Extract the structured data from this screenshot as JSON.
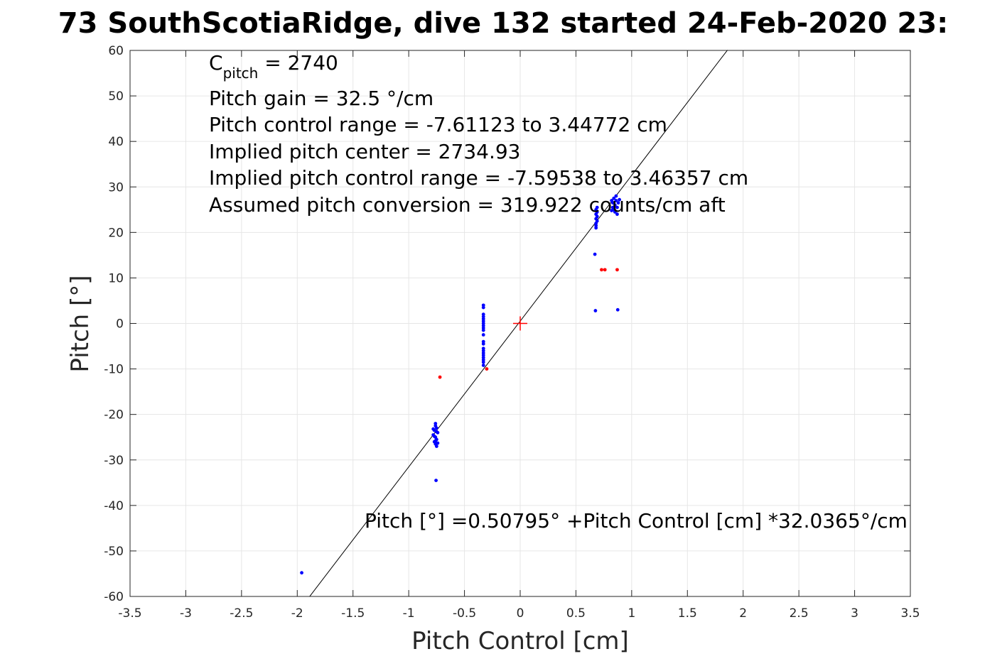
{
  "chart_data": {
    "type": "scatter",
    "title": "73 SouthScotiaRidge, dive 132 started 24-Feb-2020 23:",
    "xlabel": "Pitch Control [cm]",
    "ylabel": "Pitch [°]",
    "xlim": [
      -3.5,
      3.5
    ],
    "ylim": [
      -60,
      60
    ],
    "xticks": [
      -3.5,
      -3,
      -2.5,
      -2,
      -1.5,
      -1,
      -0.5,
      0,
      0.5,
      1,
      1.5,
      2,
      2.5,
      3,
      3.5
    ],
    "yticks": [
      -60,
      -50,
      -40,
      -30,
      -20,
      -10,
      0,
      10,
      20,
      30,
      40,
      50,
      60
    ],
    "xtick_labels": [
      "-3.5",
      "-3",
      "-2.5",
      "-2",
      "-1.5",
      "-1",
      "-0.5",
      "0",
      "0.5",
      "1",
      "1.5",
      "2",
      "2.5",
      "3",
      "3.5"
    ],
    "ytick_labels": [
      "-60",
      "-50",
      "-40",
      "-30",
      "-20",
      "-10",
      "0",
      "10",
      "20",
      "30",
      "40",
      "50",
      "60"
    ],
    "grid": true,
    "legend": "none",
    "colors": {
      "good_points": "#0000ff",
      "rejected_points": "#ff0000",
      "fit_line": "#000000",
      "center_marker": "#ff0000",
      "grid": "#e6e6e6",
      "axes": "#262626"
    },
    "fit_line": {
      "intercept": 0.50795,
      "slope": 32.0365,
      "x_range": [
        -1.89,
        1.86
      ]
    },
    "center_marker": {
      "x": 0,
      "y": 0
    },
    "series": [
      {
        "values": [
          [
            -0.76,
            -22.5
          ],
          [
            -0.75,
            -23.0
          ],
          [
            -0.77,
            -23.5
          ],
          [
            -0.74,
            -24.0
          ],
          [
            -0.78,
            -24.5
          ],
          [
            -0.76,
            -25.0
          ],
          [
            -0.75,
            -25.5
          ],
          [
            -0.77,
            -26.0
          ],
          [
            -0.76,
            -26.5
          ],
          [
            -0.75,
            -27.0
          ],
          [
            -0.76,
            -22.0
          ],
          [
            -0.77,
            -24.8
          ],
          [
            -0.75,
            -23.8
          ],
          [
            -0.76,
            -25.8
          ],
          [
            -0.74,
            -26.3
          ],
          [
            -0.78,
            -23.2
          ],
          [
            -0.755,
            -34.5
          ],
          [
            -0.33,
            4.0
          ],
          [
            -0.33,
            3.5
          ],
          [
            -0.33,
            2.0
          ],
          [
            -0.33,
            1.5
          ],
          [
            -0.33,
            1.0
          ],
          [
            -0.33,
            0.5
          ],
          [
            -0.33,
            0.0
          ],
          [
            -0.33,
            -0.5
          ],
          [
            -0.33,
            -1.0
          ],
          [
            -0.33,
            -1.5
          ],
          [
            -0.33,
            -2.5
          ],
          [
            -0.33,
            -4.0
          ],
          [
            -0.33,
            -4.5
          ],
          [
            -0.33,
            -5.5
          ],
          [
            -0.33,
            -6.0
          ],
          [
            -0.33,
            -6.5
          ],
          [
            -0.33,
            -7.0
          ],
          [
            -0.33,
            -7.5
          ],
          [
            -0.33,
            -8.0
          ],
          [
            -0.33,
            -8.5
          ],
          [
            -0.33,
            -9.2
          ],
          [
            0.68,
            21.5
          ],
          [
            0.68,
            22.0
          ],
          [
            0.69,
            22.5
          ],
          [
            0.68,
            23.0
          ],
          [
            0.69,
            23.5
          ],
          [
            0.68,
            24.0
          ],
          [
            0.69,
            24.5
          ],
          [
            0.68,
            25.0
          ],
          [
            0.69,
            25.5
          ],
          [
            0.68,
            21.0
          ],
          [
            0.67,
            15.2
          ],
          [
            0.675,
            2.8
          ],
          [
            0.82,
            27.0
          ],
          [
            0.83,
            26.5
          ],
          [
            0.84,
            27.5
          ],
          [
            0.85,
            26.0
          ],
          [
            0.86,
            27.0
          ],
          [
            0.87,
            25.5
          ],
          [
            0.88,
            26.5
          ],
          [
            0.84,
            25.0
          ],
          [
            0.85,
            24.5
          ],
          [
            0.83,
            25.5
          ],
          [
            0.86,
            28.0
          ],
          [
            0.89,
            27.2
          ],
          [
            0.82,
            24.8
          ],
          [
            0.87,
            24.0
          ],
          [
            0.875,
            3.0
          ],
          [
            -1.96,
            -54.8
          ]
        ]
      },
      {
        "values": [
          [
            -0.72,
            -11.8
          ],
          [
            -0.3,
            -10.0
          ],
          [
            0.73,
            11.8
          ],
          [
            0.76,
            11.8
          ],
          [
            0.87,
            11.8
          ]
        ]
      }
    ],
    "annotations": {
      "cpitch_main": "C",
      "cpitch_sub": "pitch",
      "cpitch_value": " = 2740",
      "pitch_gain": "Pitch gain = 32.5 °/cm",
      "control_range": "Pitch control range = -7.61123 to 3.44772 cm",
      "implied_center": "Implied pitch center = 2734.93",
      "implied_range": "Implied pitch control range = -7.59538 to 3.46357 cm",
      "conversion": "Assumed pitch conversion = 319.922 counts/cm aft",
      "fit_equation": "Pitch [°] =0.50795° +Pitch Control [cm] *32.0365°/cm"
    }
  }
}
